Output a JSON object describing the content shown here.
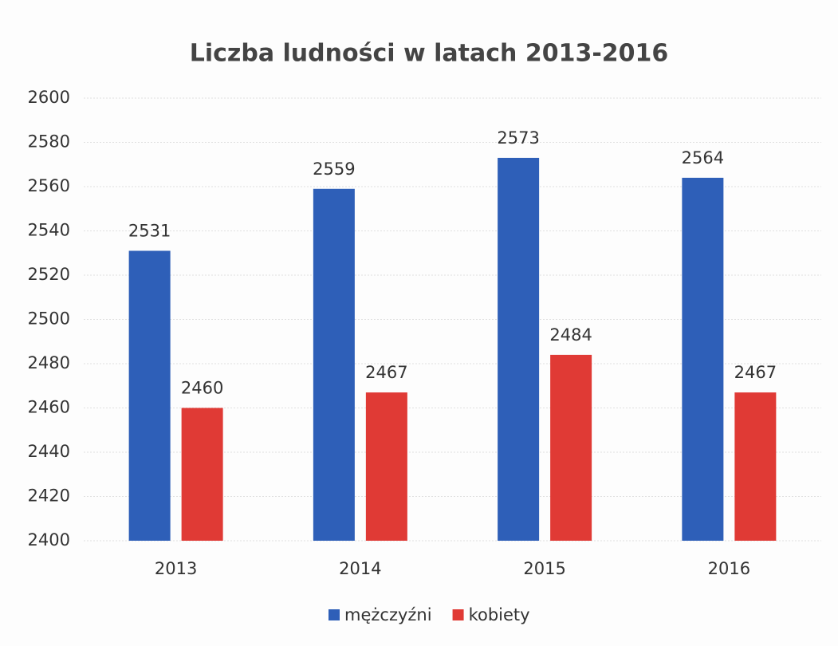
{
  "chart_data": {
    "type": "bar",
    "title": "Liczba ludności w latach 2013-2016",
    "categories": [
      "2013",
      "2014",
      "2015",
      "2016"
    ],
    "series": [
      {
        "name": "mężczyźni",
        "color": "#2e5fb8",
        "values": [
          2531,
          2559,
          2573,
          2564
        ]
      },
      {
        "name": "kobiety",
        "color": "#e03a35",
        "values": [
          2460,
          2467,
          2484,
          2467
        ]
      }
    ],
    "ylim": [
      2400,
      2600
    ],
    "yticks": [
      2400,
      2420,
      2440,
      2460,
      2480,
      2500,
      2520,
      2540,
      2560,
      2580,
      2600
    ],
    "grid": true,
    "legend": "bottom"
  }
}
